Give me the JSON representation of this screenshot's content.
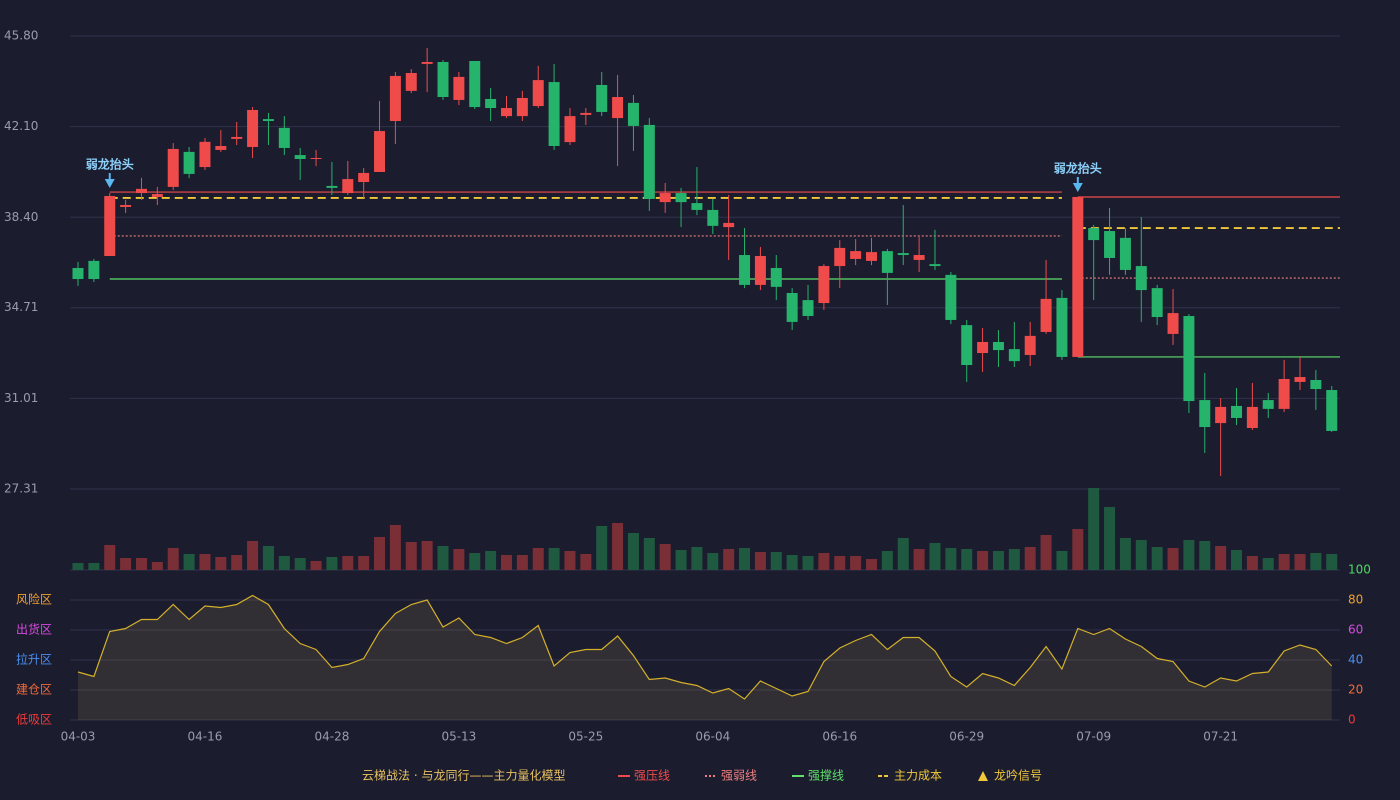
{
  "chart_data": {
    "type": "candlestick",
    "categories": [
      "04-03",
      null,
      null,
      null,
      null,
      null,
      null,
      null,
      "04-16",
      null,
      null,
      null,
      null,
      null,
      null,
      null,
      "04-28",
      null,
      null,
      null,
      null,
      null,
      null,
      null,
      "05-13",
      null,
      null,
      null,
      null,
      null,
      null,
      null,
      "05-25",
      null,
      null,
      null,
      null,
      null,
      null,
      null,
      "06-04",
      null,
      null,
      null,
      null,
      null,
      null,
      null,
      "06-16",
      null,
      null,
      null,
      null,
      null,
      null,
      null,
      "06-29",
      null,
      null,
      null,
      null,
      null,
      null,
      null,
      "07-09",
      null,
      null,
      null,
      null,
      null,
      null,
      null,
      "07-21",
      null,
      null,
      null,
      null,
      null,
      null,
      null
    ],
    "open": [
      36.33,
      36.62,
      36.82,
      38.82,
      39.39,
      39.23,
      39.64,
      41.07,
      40.45,
      41.15,
      41.6,
      41.27,
      42.41,
      42.05,
      40.94,
      40.78,
      39.68,
      39.39,
      39.84,
      40.25,
      42.33,
      43.56,
      44.66,
      44.74,
      43.19,
      44.78,
      43.23,
      42.53,
      42.53,
      42.94,
      43.92,
      41.47,
      42.58,
      43.8,
      42.45,
      43.07,
      42.17,
      39.02,
      39.39,
      38.98,
      38.7,
      38.0,
      36.86,
      35.64,
      36.33,
      35.31,
      35.02,
      34.9,
      36.41,
      36.7,
      36.62,
      37.02,
      36.94,
      36.66,
      36.49,
      36.05,
      34.0,
      32.86,
      33.31,
      33.02,
      32.78,
      33.72,
      35.11,
      32.7,
      37.96,
      37.84,
      37.56,
      36.41,
      35.51,
      33.64,
      34.37,
      30.94,
      30.0,
      30.7,
      29.8,
      30.94,
      30.58,
      31.68,
      31.76,
      31.35
    ],
    "close": [
      35.88,
      35.88,
      39.27,
      38.9,
      39.56,
      39.35,
      41.19,
      40.17,
      41.48,
      41.31,
      41.68,
      42.78,
      42.33,
      41.23,
      40.78,
      40.82,
      39.6,
      39.96,
      40.21,
      41.92,
      44.17,
      44.29,
      44.74,
      43.31,
      44.13,
      42.9,
      42.86,
      42.86,
      43.27,
      44.0,
      41.31,
      42.53,
      42.66,
      42.7,
      43.31,
      42.13,
      39.15,
      39.39,
      39.02,
      38.7,
      38.05,
      38.17,
      35.64,
      36.82,
      35.56,
      34.13,
      34.37,
      36.41,
      37.15,
      37.02,
      36.98,
      36.13,
      36.86,
      36.86,
      36.41,
      34.21,
      32.37,
      33.31,
      32.98,
      32.53,
      33.56,
      35.07,
      32.7,
      39.23,
      37.47,
      36.74,
      36.25,
      35.43,
      34.33,
      34.49,
      30.9,
      29.84,
      30.66,
      30.21,
      30.66,
      30.58,
      31.8,
      31.88,
      31.39,
      29.68
    ],
    "high": [
      36.58,
      36.7,
      39.39,
      39.11,
      40.01,
      39.64,
      41.43,
      41.27,
      41.64,
      41.96,
      42.29,
      42.9,
      42.66,
      42.53,
      41.23,
      41.15,
      40.66,
      40.7,
      40.41,
      43.15,
      44.33,
      44.45,
      45.31,
      44.82,
      44.33,
      44.78,
      43.68,
      43.35,
      43.56,
      44.58,
      44.66,
      42.86,
      42.86,
      44.33,
      44.21,
      43.39,
      42.45,
      39.8,
      39.6,
      40.45,
      39.15,
      39.31,
      37.96,
      37.19,
      36.86,
      35.51,
      35.64,
      36.49,
      37.47,
      37.51,
      37.56,
      37.11,
      38.9,
      37.6,
      37.89,
      36.17,
      34.21,
      33.88,
      33.8,
      34.13,
      34.13,
      36.66,
      35.43,
      39.23,
      38.09,
      38.78,
      37.96,
      38.41,
      35.64,
      35.47,
      34.45,
      32.05,
      31.02,
      31.43,
      31.64,
      31.23,
      32.58,
      32.7,
      32.17,
      31.51
    ],
    "low": [
      35.6,
      35.76,
      36.82,
      38.58,
      39.11,
      38.9,
      39.51,
      40.0,
      40.33,
      41.07,
      41.35,
      40.82,
      41.35,
      40.94,
      39.92,
      40.49,
      39.31,
      39.31,
      39.19,
      40.25,
      41.39,
      43.47,
      43.51,
      43.19,
      42.98,
      42.82,
      42.33,
      42.45,
      42.33,
      42.86,
      41.15,
      41.35,
      42.17,
      42.53,
      40.49,
      41.11,
      38.66,
      38.58,
      38.0,
      38.49,
      37.72,
      36.66,
      35.51,
      35.43,
      35.02,
      33.8,
      34.21,
      34.62,
      35.51,
      36.45,
      36.45,
      34.82,
      36.45,
      36.17,
      36.25,
      34.04,
      31.68,
      32.09,
      32.29,
      32.29,
      32.33,
      33.64,
      32.58,
      32.7,
      35.02,
      36.05,
      36.05,
      34.13,
      34.0,
      33.19,
      30.41,
      28.78,
      27.84,
      29.92,
      29.72,
      30.21,
      30.45,
      31.35,
      30.54,
      29.64
    ],
    "volume": [
      7,
      7,
      25,
      12,
      12,
      8,
      22,
      16,
      16,
      13,
      15,
      29,
      24,
      14,
      12,
      9,
      13,
      14,
      14,
      33,
      45,
      28,
      29,
      24,
      21,
      17,
      19,
      15,
      15,
      22,
      22,
      19,
      16,
      44,
      47,
      37,
      32,
      26,
      20,
      23,
      17,
      21,
      22,
      18,
      18,
      15,
      14,
      17,
      14,
      14,
      11,
      19,
      32,
      21,
      27,
      22,
      21,
      19,
      19,
      21,
      23,
      35,
      19,
      41,
      82,
      63,
      32,
      30,
      23,
      22,
      30,
      29,
      24,
      20,
      14,
      12,
      16,
      16,
      17,
      16
    ],
    "up_color": "#ef4b4b",
    "down_color": "#26b36b",
    "ylim": [
      27.31,
      45.8
    ],
    "yticks": [
      {
        "value": 45.8,
        "label": "45.80"
      },
      {
        "value": 42.1,
        "label": "42.10"
      },
      {
        "value": 38.4,
        "label": "38.40"
      },
      34.71,
      31.01,
      27.31
    ],
    "grid": true,
    "signals": [
      {
        "index": 2,
        "label": "弱龙抬头",
        "levels": [
          39.43,
          37.64,
          35.88,
          39.19
        ]
      },
      {
        "index": 63,
        "label": "弱龙抬头",
        "levels": [
          39.23,
          35.92,
          32.7,
          37.96
        ]
      }
    ],
    "oscillator": {
      "type": "line",
      "color": "#d4b02a",
      "values": [
        32,
        29,
        59,
        61,
        67,
        67,
        77,
        67,
        76,
        75,
        77,
        83,
        77,
        61,
        51,
        47,
        35,
        37,
        41,
        59,
        71,
        77,
        80,
        62,
        68,
        57,
        55,
        51,
        55,
        63,
        36,
        45,
        47,
        47,
        56,
        43,
        27,
        28,
        25,
        23,
        18,
        21,
        14,
        26,
        21,
        16,
        19,
        39,
        48,
        53,
        57,
        47,
        55,
        55,
        46,
        29,
        22,
        31,
        28,
        23,
        35,
        49,
        34,
        61,
        57,
        61,
        54,
        49,
        41,
        39,
        26,
        22,
        28,
        26,
        31,
        32,
        46,
        50,
        47,
        36
      ],
      "ylim": [
        0,
        100
      ],
      "yticks": [
        0,
        20,
        40,
        60,
        80,
        100
      ],
      "ytick_colors": [
        "#f03a3a",
        "#f06a3a",
        "#4a8ff0",
        "#d84ae0",
        "#f0a030",
        "#4cd964"
      ],
      "zones": [
        {
          "label": "风险区",
          "value": 80,
          "color": "#f0a030"
        },
        {
          "label": "出货区",
          "value": 60,
          "color": "#d84ae0"
        },
        {
          "label": "拉升区",
          "value": 40,
          "color": "#4a8ff0"
        },
        {
          "label": "建仓区",
          "value": 20,
          "color": "#f06a3a"
        },
        {
          "label": "低吸区",
          "value": 0,
          "color": "#f03a3a"
        }
      ]
    },
    "legend": {
      "title": "云梯战法 · 与龙同行——主力量化模型",
      "items": [
        {
          "name": "强压线",
          "color": "#ef4b4b",
          "style": "solid"
        },
        {
          "name": "强弱线",
          "color": "#f08080",
          "style": "dotted"
        },
        {
          "name": "强撑线",
          "color": "#5ee06a",
          "style": "solid"
        },
        {
          "name": "主力成本",
          "color": "#f0c83a",
          "style": "dashed"
        },
        {
          "name": "龙吟信号",
          "color": "#f0c83a",
          "style": "triangle"
        }
      ]
    }
  }
}
